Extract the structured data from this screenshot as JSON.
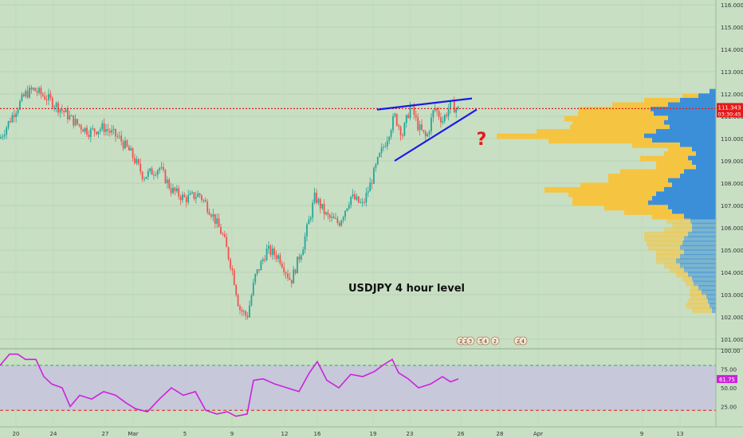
{
  "chart_data": {
    "type": "candlestick",
    "annotation": "USDJPY 4 hour level",
    "question_mark": "?",
    "price_axis": {
      "ticks": [
        "116.000",
        "115.000",
        "114.000",
        "113.000",
        "112.000",
        "111.000",
        "110.000",
        "109.000",
        "108.000",
        "107.000",
        "106.000",
        "105.000",
        "104.000",
        "103.000",
        "102.000",
        "101.000"
      ],
      "range": [
        100.8,
        116.2
      ]
    },
    "current_price": {
      "label": "111.343",
      "value": 111.343,
      "countdown": "03:30:45"
    },
    "x_axis": {
      "ticks": [
        "20",
        "24",
        "27",
        "Mar",
        "5",
        "9",
        "12",
        "16",
        "19",
        "23",
        "26",
        "28",
        "Apr",
        "9",
        "13"
      ]
    },
    "price_path": [
      {
        "x": 0,
        "y": 110.0
      },
      {
        "x": 18,
        "y": 111.2
      },
      {
        "x": 32,
        "y": 112.0
      },
      {
        "x": 42,
        "y": 112.2
      },
      {
        "x": 60,
        "y": 111.8
      },
      {
        "x": 80,
        "y": 111.2
      },
      {
        "x": 95,
        "y": 110.7
      },
      {
        "x": 112,
        "y": 110.3
      },
      {
        "x": 130,
        "y": 110.5
      },
      {
        "x": 150,
        "y": 110.0
      },
      {
        "x": 165,
        "y": 109.3
      },
      {
        "x": 180,
        "y": 108.3
      },
      {
        "x": 200,
        "y": 108.7
      },
      {
        "x": 215,
        "y": 107.7
      },
      {
        "x": 232,
        "y": 107.3
      },
      {
        "x": 250,
        "y": 107.5
      },
      {
        "x": 265,
        "y": 106.7
      },
      {
        "x": 280,
        "y": 105.6
      },
      {
        "x": 292,
        "y": 104.0
      },
      {
        "x": 300,
        "y": 102.4
      },
      {
        "x": 310,
        "y": 102.0
      },
      {
        "x": 320,
        "y": 103.8
      },
      {
        "x": 335,
        "y": 105.0
      },
      {
        "x": 350,
        "y": 104.7
      },
      {
        "x": 365,
        "y": 103.6
      },
      {
        "x": 380,
        "y": 105.2
      },
      {
        "x": 395,
        "y": 107.4
      },
      {
        "x": 410,
        "y": 106.5
      },
      {
        "x": 425,
        "y": 106.2
      },
      {
        "x": 440,
        "y": 107.4
      },
      {
        "x": 455,
        "y": 107.0
      },
      {
        "x": 465,
        "y": 108.0
      },
      {
        "x": 475,
        "y": 109.1
      },
      {
        "x": 485,
        "y": 110.0
      },
      {
        "x": 495,
        "y": 111.0
      },
      {
        "x": 505,
        "y": 110.2
      },
      {
        "x": 515,
        "y": 111.5
      },
      {
        "x": 525,
        "y": 110.5
      },
      {
        "x": 535,
        "y": 110.0
      },
      {
        "x": 545,
        "y": 111.4
      },
      {
        "x": 555,
        "y": 110.8
      },
      {
        "x": 565,
        "y": 111.5
      },
      {
        "x": 575,
        "y": 111.3
      }
    ],
    "trendlines": [
      {
        "name": "wedge-upper",
        "from": [
          473,
          111.3
        ],
        "to": [
          592,
          111.8
        ]
      },
      {
        "name": "wedge-lower",
        "from": [
          495,
          109.0
        ],
        "to": [
          598,
          111.3
        ]
      }
    ],
    "volume_profile": {
      "levels": [
        {
          "price": 112.1,
          "yellow": 0,
          "blue": 8
        },
        {
          "price": 111.9,
          "yellow": 20,
          "blue": 22
        },
        {
          "price": 111.7,
          "yellow": 45,
          "blue": 45
        },
        {
          "price": 111.5,
          "yellow": 70,
          "blue": 60
        },
        {
          "price": 111.3,
          "yellow": 90,
          "blue": 82
        },
        {
          "price": 111.1,
          "yellow": 95,
          "blue": 78
        },
        {
          "price": 110.9,
          "yellow": 130,
          "blue": 60
        },
        {
          "price": 110.7,
          "yellow": 115,
          "blue": 65
        },
        {
          "price": 110.5,
          "yellow": 125,
          "blue": 58
        },
        {
          "price": 110.3,
          "yellow": 150,
          "blue": 75
        },
        {
          "price": 110.1,
          "yellow": 185,
          "blue": 90
        },
        {
          "price": 109.9,
          "yellow": 130,
          "blue": 80
        },
        {
          "price": 109.7,
          "yellow": 60,
          "blue": 45
        },
        {
          "price": 109.5,
          "yellow": 30,
          "blue": 30
        },
        {
          "price": 109.3,
          "yellow": 40,
          "blue": 25
        },
        {
          "price": 109.1,
          "yellow": 60,
          "blue": 35
        },
        {
          "price": 108.9,
          "yellow": 45,
          "blue": 30
        },
        {
          "price": 108.7,
          "yellow": 50,
          "blue": 25
        },
        {
          "price": 108.5,
          "yellow": 80,
          "blue": 40
        },
        {
          "price": 108.3,
          "yellow": 90,
          "blue": 45
        },
        {
          "price": 108.1,
          "yellow": 75,
          "blue": 60
        },
        {
          "price": 107.9,
          "yellow": 115,
          "blue": 55
        },
        {
          "price": 107.7,
          "yellow": 150,
          "blue": 65
        },
        {
          "price": 107.5,
          "yellow": 110,
          "blue": 75
        },
        {
          "price": 107.3,
          "yellow": 100,
          "blue": 80
        },
        {
          "price": 107.1,
          "yellow": 95,
          "blue": 85
        },
        {
          "price": 106.9,
          "yellow": 80,
          "blue": 60
        },
        {
          "price": 106.7,
          "yellow": 60,
          "blue": 55
        },
        {
          "price": 106.5,
          "yellow": 40,
          "blue": 40
        },
        {
          "price": 106.3,
          "yellow": 30,
          "blue": 32
        },
        {
          "price": 106.1,
          "yellow": 25,
          "blue": 30
        },
        {
          "price": 105.9,
          "yellow": 35,
          "blue": 30
        },
        {
          "price": 105.7,
          "yellow": 55,
          "blue": 35
        },
        {
          "price": 105.5,
          "yellow": 50,
          "blue": 40
        },
        {
          "price": 105.3,
          "yellow": 45,
          "blue": 42
        },
        {
          "price": 105.1,
          "yellow": 40,
          "blue": 45
        },
        {
          "price": 104.9,
          "yellow": 35,
          "blue": 40
        },
        {
          "price": 104.7,
          "yellow": 30,
          "blue": 45
        },
        {
          "price": 104.5,
          "yellow": 25,
          "blue": 50
        },
        {
          "price": 104.3,
          "yellow": 20,
          "blue": 45
        },
        {
          "price": 104.1,
          "yellow": 18,
          "blue": 40
        },
        {
          "price": 103.9,
          "yellow": 15,
          "blue": 35
        },
        {
          "price": 103.7,
          "yellow": 12,
          "blue": 30
        },
        {
          "price": 103.5,
          "yellow": 10,
          "blue": 28
        },
        {
          "price": 103.3,
          "yellow": 10,
          "blue": 22
        },
        {
          "price": 103.1,
          "yellow": 15,
          "blue": 18
        },
        {
          "price": 102.9,
          "yellow": 20,
          "blue": 12
        },
        {
          "price": 102.7,
          "yellow": 25,
          "blue": 10
        },
        {
          "price": 102.5,
          "yellow": 30,
          "blue": 8
        },
        {
          "price": 102.3,
          "yellow": 25,
          "blue": 5
        }
      ]
    },
    "rsi": {
      "axis_ticks": [
        "100.00",
        "75.00",
        "50.00",
        "25.00"
      ],
      "current": "61.75",
      "overbought": 80,
      "oversold": 20,
      "path": [
        {
          "x": 0,
          "y": 80
        },
        {
          "x": 12,
          "y": 95
        },
        {
          "x": 22,
          "y": 95
        },
        {
          "x": 32,
          "y": 88
        },
        {
          "x": 45,
          "y": 88
        },
        {
          "x": 55,
          "y": 65
        },
        {
          "x": 65,
          "y": 55
        },
        {
          "x": 78,
          "y": 50
        },
        {
          "x": 88,
          "y": 25
        },
        {
          "x": 100,
          "y": 40
        },
        {
          "x": 115,
          "y": 35
        },
        {
          "x": 130,
          "y": 45
        },
        {
          "x": 145,
          "y": 40
        },
        {
          "x": 158,
          "y": 30
        },
        {
          "x": 170,
          "y": 22
        },
        {
          "x": 185,
          "y": 18
        },
        {
          "x": 200,
          "y": 35
        },
        {
          "x": 215,
          "y": 50
        },
        {
          "x": 230,
          "y": 40
        },
        {
          "x": 245,
          "y": 45
        },
        {
          "x": 258,
          "y": 20
        },
        {
          "x": 272,
          "y": 15
        },
        {
          "x": 285,
          "y": 18
        },
        {
          "x": 296,
          "y": 12
        },
        {
          "x": 310,
          "y": 15
        },
        {
          "x": 318,
          "y": 60
        },
        {
          "x": 330,
          "y": 62
        },
        {
          "x": 345,
          "y": 55
        },
        {
          "x": 360,
          "y": 50
        },
        {
          "x": 375,
          "y": 45
        },
        {
          "x": 388,
          "y": 70
        },
        {
          "x": 398,
          "y": 85
        },
        {
          "x": 410,
          "y": 60
        },
        {
          "x": 425,
          "y": 50
        },
        {
          "x": 440,
          "y": 68
        },
        {
          "x": 455,
          "y": 65
        },
        {
          "x": 470,
          "y": 72
        },
        {
          "x": 480,
          "y": 80
        },
        {
          "x": 492,
          "y": 88
        },
        {
          "x": 500,
          "y": 70
        },
        {
          "x": 512,
          "y": 62
        },
        {
          "x": 525,
          "y": 50
        },
        {
          "x": 540,
          "y": 55
        },
        {
          "x": 555,
          "y": 65
        },
        {
          "x": 565,
          "y": 58
        },
        {
          "x": 575,
          "y": 62
        }
      ]
    },
    "event_markers": {
      "groups": [
        {
          "x": 578,
          "labels": [
            "2",
            "2",
            "3"
          ]
        },
        {
          "x": 603,
          "labels": [
            "5",
            "4"
          ]
        },
        {
          "x": 621,
          "labels": [
            "2"
          ]
        },
        {
          "x": 650,
          "labels": [
            "2",
            "4"
          ]
        }
      ]
    },
    "colors": {
      "background": "#c8dfc4",
      "bullish": "#26a69a",
      "bearish": "#ef5350",
      "trendline": "#1a1ae6",
      "rsi_line": "#cc22dd",
      "rsi_band": "#c7c5dc",
      "price_line": "#e61919",
      "vp_yellow": "#f5c542",
      "vp_blue": "#3b8fd9"
    }
  }
}
